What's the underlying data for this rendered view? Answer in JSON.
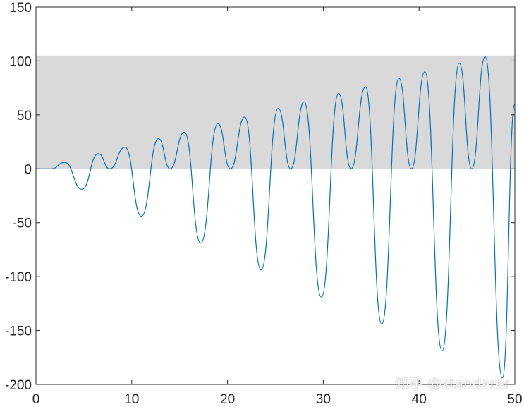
{
  "chart_data": {
    "type": "line",
    "title": "",
    "xlabel": "",
    "ylabel": "",
    "xlim": [
      0,
      50
    ],
    "ylim": [
      -200,
      150
    ],
    "xticks": [
      "0",
      "10",
      "20",
      "30",
      "40",
      "50"
    ],
    "yticks": [
      "150",
      "100",
      "50",
      "0",
      "-50",
      "-100",
      "-150",
      "-200"
    ],
    "grid": false,
    "legend": "none",
    "shaded_band": {
      "y_from": 0,
      "y_to": 105,
      "color": "#d9d9d9"
    },
    "series": [
      {
        "color": "#0072bd",
        "x": [
          0,
          1.6,
          3.0,
          4.8,
          6.5,
          7.7,
          9.3,
          11.0,
          12.8,
          14.0,
          15.5,
          17.2,
          19.0,
          20.3,
          21.8,
          23.5,
          25.3,
          26.6,
          28.0,
          29.8,
          31.6,
          32.9,
          34.4,
          36.1,
          37.9,
          39.2,
          40.6,
          42.4,
          44.2,
          45.5,
          46.9,
          48.7,
          50.0
        ],
        "y": [
          0,
          0,
          6,
          -19,
          14,
          0,
          20,
          -44,
          28,
          0,
          34,
          -69,
          42,
          0,
          48,
          -94,
          56,
          0,
          62,
          -119,
          70,
          0,
          76,
          -144,
          84,
          0,
          90,
          -169,
          98,
          0,
          104,
          -194,
          60
        ]
      }
    ]
  },
  "watermark": {
    "text": "知乎 @standarer"
  }
}
